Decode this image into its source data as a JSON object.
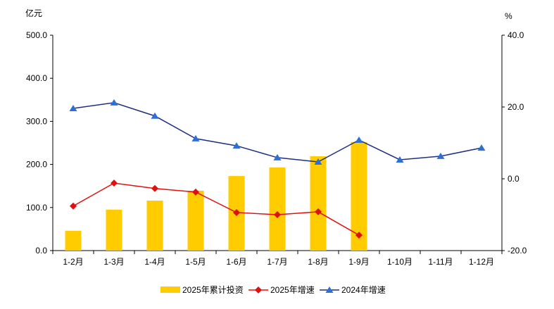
{
  "chart_data": {
    "type": "bar+line",
    "left_unit": "亿元",
    "right_unit": "%",
    "categories": [
      "1-2月",
      "1-3月",
      "1-4月",
      "1-5月",
      "1-6月",
      "1-7月",
      "1-8月",
      "1-9月",
      "1-10月",
      "1-11月",
      "1-12月"
    ],
    "left_axis": {
      "range": [
        0,
        500
      ],
      "ticks": [
        "0.0",
        "100.0",
        "200.0",
        "300.0",
        "400.0",
        "500.0"
      ]
    },
    "right_axis": {
      "range": [
        -20,
        40
      ],
      "ticks": [
        "-20.0",
        "0.0",
        "20.0",
        "40.0"
      ]
    },
    "grid": false,
    "legend_placement": "bottom",
    "series": [
      {
        "name": "2025年累计投资",
        "kind": "bar",
        "axis": "left",
        "color": "#FFCC00",
        "values": [
          46,
          95,
          116,
          139,
          173,
          193,
          219,
          252,
          null,
          null,
          null
        ]
      },
      {
        "name": "2025年增速",
        "kind": "line",
        "axis": "right",
        "color": "#E01010",
        "marker": "diamond",
        "values": [
          -7.6,
          -1.2,
          -2.7,
          -3.7,
          -9.4,
          -10.0,
          -9.2,
          -15.7,
          null,
          null,
          null
        ]
      },
      {
        "name": "2024年增速",
        "kind": "line",
        "axis": "right",
        "color": "#1F2F80",
        "marker_color": "#2E6FD6",
        "marker": "triangle",
        "values": [
          19.6,
          21.2,
          17.5,
          11.2,
          9.2,
          5.9,
          4.7,
          10.8,
          5.3,
          6.3,
          8.6
        ]
      }
    ]
  }
}
